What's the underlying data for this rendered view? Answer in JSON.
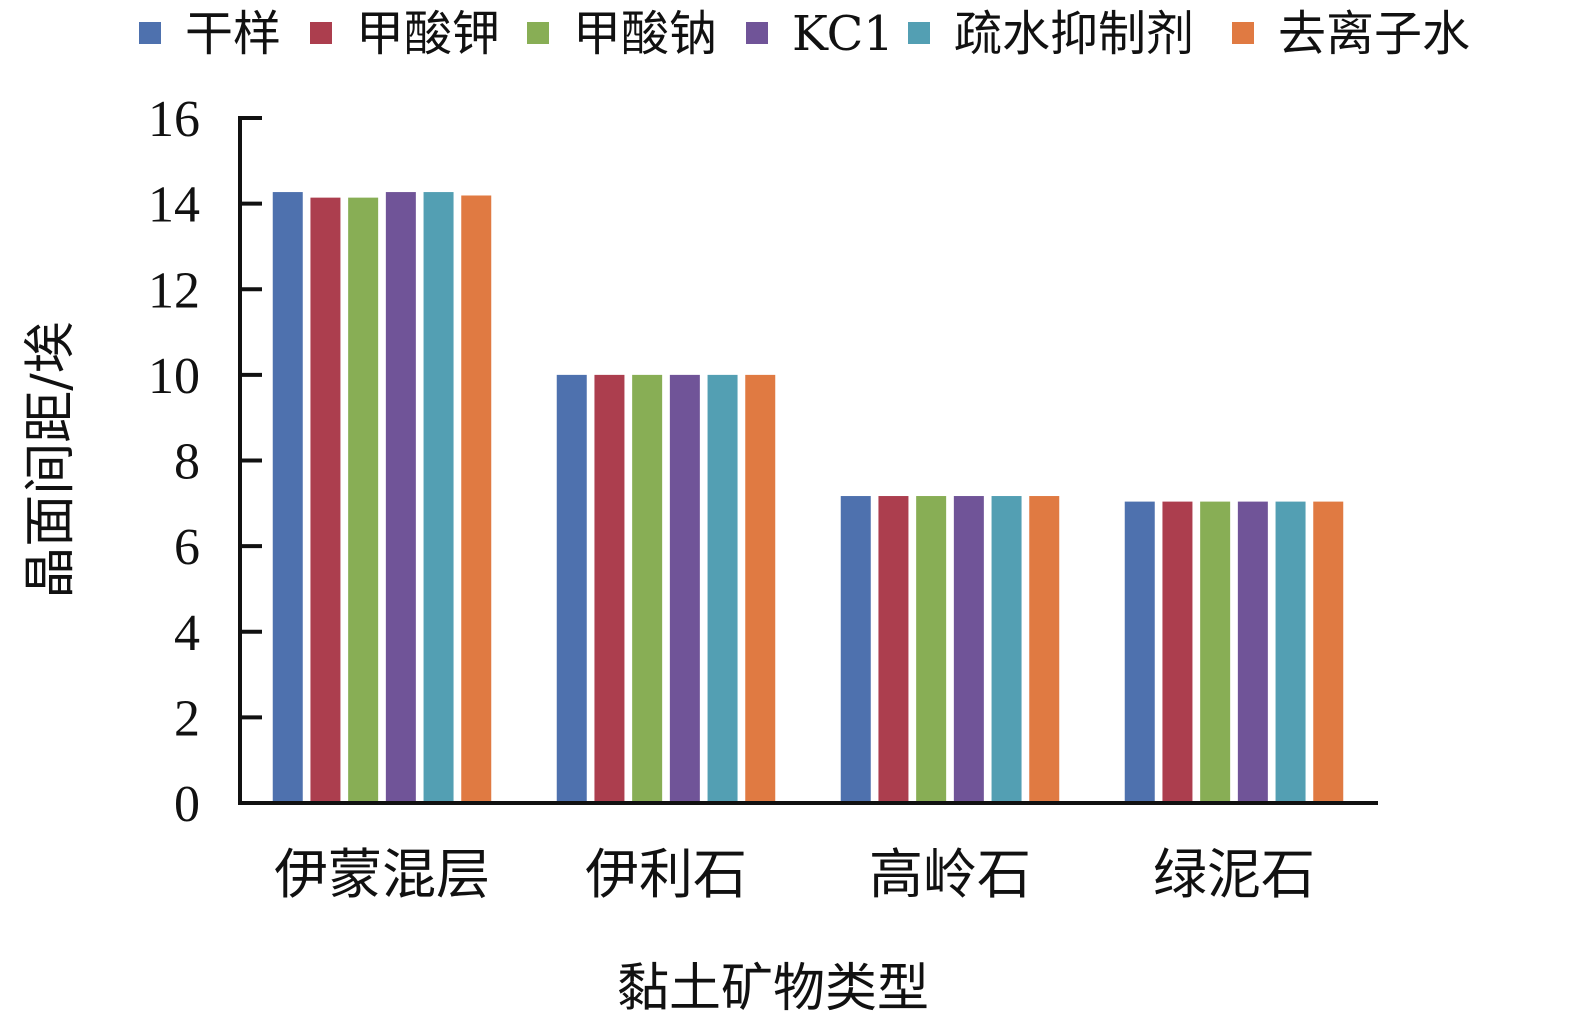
{
  "chart_data": {
    "type": "bar",
    "title": "",
    "xlabel": "黏土矿物类型",
    "ylabel": "晶面间距/埃",
    "ylim": [
      0,
      16
    ],
    "yticks": [
      0,
      2,
      4,
      6,
      8,
      10,
      12,
      14,
      16
    ],
    "grid": false,
    "legend_position": "top",
    "categories": [
      "伊蒙混层",
      "伊利石",
      "高岭石",
      "绿泥石"
    ],
    "series": [
      {
        "name": "干样",
        "color": "#4E71AE",
        "values": [
          14.27,
          10.0,
          7.17,
          7.04
        ]
      },
      {
        "name": "甲酸钾",
        "color": "#AC3E4E",
        "values": [
          14.14,
          10.0,
          7.17,
          7.04
        ]
      },
      {
        "name": "甲酸钠",
        "color": "#88AE55",
        "values": [
          14.14,
          10.0,
          7.17,
          7.04
        ]
      },
      {
        "name": "KC1",
        "color": "#705498",
        "values": [
          14.27,
          10.0,
          7.17,
          7.04
        ]
      },
      {
        "name": "疏水抑制剂",
        "color": "#539FB3",
        "values": [
          14.27,
          10.0,
          7.17,
          7.04
        ]
      },
      {
        "name": "去离子水",
        "color": "#E07A42",
        "values": [
          14.19,
          10.0,
          7.17,
          7.04
        ]
      }
    ]
  }
}
